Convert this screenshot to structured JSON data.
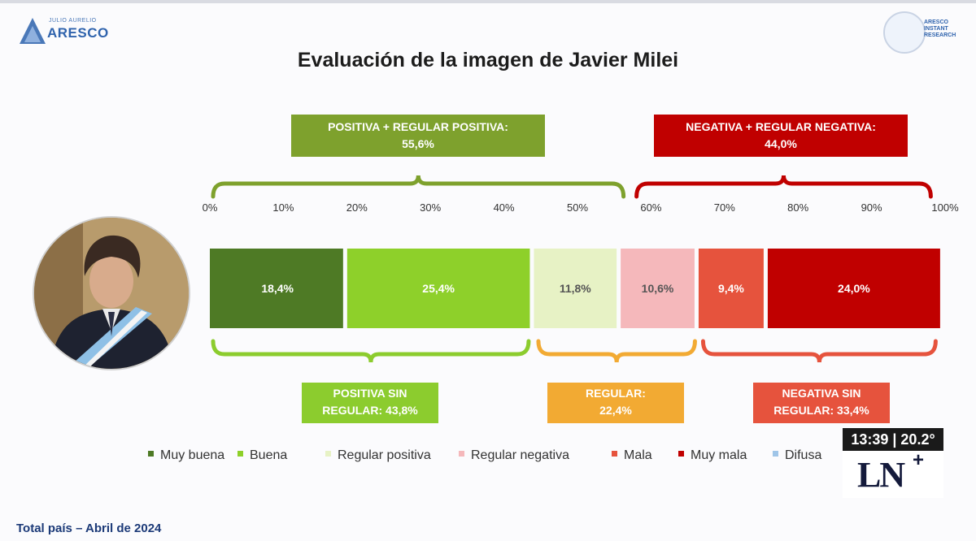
{
  "header": {
    "logo_left_small": "JULIO AURELIO",
    "logo_left_big": "ARESCO",
    "logo_right_text": [
      "ARESCO",
      "INSTANT",
      "RESEARCH"
    ]
  },
  "chart_data": {
    "type": "bar",
    "orientation": "horizontal-stacked",
    "title": "Evaluación de la imagen de Javier Milei",
    "x_ticks": [
      "0%",
      "10%",
      "20%",
      "30%",
      "40%",
      "50%",
      "60%",
      "70%",
      "80%",
      "90%",
      "100%"
    ],
    "xlim": [
      0,
      100
    ],
    "segments": [
      {
        "name": "Muy buena",
        "value": 18.4,
        "label": "18,4%",
        "color": "#4e7a25",
        "text_color": "#ffffff"
      },
      {
        "name": "Buena",
        "value": 25.4,
        "label": "25,4%",
        "color": "#8ed02a",
        "text_color": "#ffffff"
      },
      {
        "name": "Regular positiva",
        "value": 11.8,
        "label": "11,8%",
        "color": "#e7f2c5",
        "text_color": "#555555"
      },
      {
        "name": "Regular negativa",
        "value": 10.6,
        "label": "10,6%",
        "color": "#f5b8bb",
        "text_color": "#555555"
      },
      {
        "name": "Mala",
        "value": 9.4,
        "label": "9,4%",
        "color": "#e6533d",
        "text_color": "#ffffff"
      },
      {
        "name": "Muy mala",
        "value": 24.0,
        "label": "24,0%",
        "color": "#c00000",
        "text_color": "#ffffff"
      }
    ],
    "groups_top": [
      {
        "label_line1": "POSITIVA + REGULAR POSITIVA:",
        "label_line2": "55,6%",
        "value": 55.6,
        "color": "#7ea12d"
      },
      {
        "label_line1": "NEGATIVA + REGULAR NEGATIVA:",
        "label_line2": "44,0%",
        "value": 44.0,
        "color": "#c00000"
      }
    ],
    "groups_bottom": [
      {
        "label_line1": "POSITIVA SIN",
        "label_line2": "REGULAR: 43,8%",
        "value": 43.8,
        "color": "#8ccc2e"
      },
      {
        "label_line1": "REGULAR:",
        "label_line2": "22,4%",
        "value": 22.4,
        "color": "#f2aa33"
      },
      {
        "label_line1": "NEGATIVA SIN",
        "label_line2": "REGULAR: 33,4%",
        "value": 33.4,
        "color": "#e6533d"
      }
    ],
    "legend": {
      "placement": "bottom",
      "items": [
        {
          "name": "Muy buena",
          "color": "#4e7a25"
        },
        {
          "name": "Buena",
          "color": "#8ed02a"
        },
        {
          "name": "Regular positiva",
          "color": "#e7f2c5"
        },
        {
          "name": "Regular negativa",
          "color": "#f5b8bb"
        },
        {
          "name": "Mala",
          "color": "#e6533d"
        },
        {
          "name": "Muy mala",
          "color": "#c00000"
        },
        {
          "name": "Difusa",
          "color": "#9fc5e8"
        }
      ]
    }
  },
  "footer": "Total país – Abril de 2024",
  "tv": {
    "clock": "13:39 | 20.2°",
    "logo": "LN",
    "logo_plus": "+"
  }
}
